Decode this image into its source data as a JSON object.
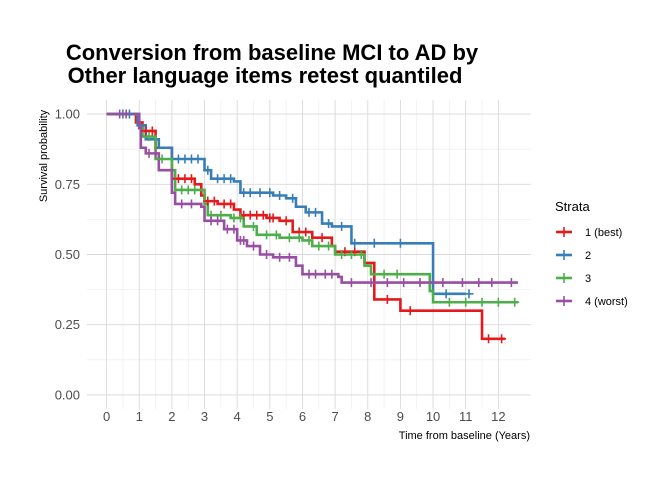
{
  "chart_data": {
    "type": "line",
    "title_lines": [
      "Conversion from baseline MCI to AD by",
      "Other language items retest quantiled"
    ],
    "xlabel": "Time from baseline (Years)",
    "ylabel": "Survival probability",
    "xlim": [
      -0.6,
      13.0
    ],
    "ylim": [
      -0.05,
      1.05
    ],
    "xticks": [
      0,
      1,
      2,
      3,
      4,
      5,
      6,
      7,
      8,
      9,
      10,
      11,
      12
    ],
    "xtick_labels": [
      "0",
      "1",
      "2",
      "3",
      "4",
      "5",
      "6",
      "7",
      "8",
      "9",
      "10",
      "11",
      "12"
    ],
    "yticks": [
      0,
      0.25,
      0.5,
      0.75,
      1
    ],
    "ytick_labels": [
      "0.00",
      "0.25",
      "0.50",
      "0.75",
      "1.00"
    ],
    "grid": true,
    "legend": {
      "title": "Strata",
      "position": "right"
    },
    "series": [
      {
        "name": "1 (best)",
        "color": "#e41a1c",
        "steps": [
          [
            0,
            1.0
          ],
          [
            0.9,
            0.97
          ],
          [
            1.1,
            0.94
          ],
          [
            1.5,
            0.88
          ],
          [
            2.0,
            0.77
          ],
          [
            2.7,
            0.75
          ],
          [
            2.9,
            0.71
          ],
          [
            3.0,
            0.69
          ],
          [
            3.4,
            0.68
          ],
          [
            3.9,
            0.66
          ],
          [
            4.1,
            0.64
          ],
          [
            4.9,
            0.63
          ],
          [
            5.3,
            0.62
          ],
          [
            5.7,
            0.58
          ],
          [
            6.3,
            0.56
          ],
          [
            6.9,
            0.53
          ],
          [
            7.0,
            0.51
          ],
          [
            7.9,
            0.47
          ],
          [
            8.2,
            0.34
          ],
          [
            9.0,
            0.3
          ],
          [
            10.0,
            0.3
          ],
          [
            11.5,
            0.2
          ],
          [
            12.2,
            0.2
          ]
        ],
        "censor": [
          1.2,
          1.4,
          2.2,
          2.4,
          2.6,
          3.1,
          3.3,
          3.6,
          3.8,
          4.2,
          4.4,
          4.6,
          4.8,
          5.0,
          5.1,
          5.5,
          5.9,
          6.1,
          6.6,
          7.3,
          7.6,
          8.6,
          9.3,
          11.7,
          12.1
        ]
      },
      {
        "name": "2",
        "color": "#377eb8",
        "steps": [
          [
            0,
            1.0
          ],
          [
            0.95,
            0.96
          ],
          [
            1.2,
            0.91
          ],
          [
            1.6,
            0.88
          ],
          [
            2.0,
            0.84
          ],
          [
            2.5,
            0.84
          ],
          [
            3.0,
            0.8
          ],
          [
            3.2,
            0.77
          ],
          [
            3.9,
            0.76
          ],
          [
            4.1,
            0.72
          ],
          [
            5.1,
            0.71
          ],
          [
            5.5,
            0.7
          ],
          [
            5.8,
            0.67
          ],
          [
            6.1,
            0.65
          ],
          [
            6.6,
            0.61
          ],
          [
            6.9,
            0.6
          ],
          [
            7.4,
            0.6
          ],
          [
            7.5,
            0.54
          ],
          [
            8.0,
            0.54
          ],
          [
            10.0,
            0.36
          ],
          [
            11.0,
            0.36
          ]
        ],
        "censor": [
          0.5,
          0.7,
          2.2,
          2.4,
          2.6,
          2.8,
          3.1,
          3.4,
          3.6,
          3.8,
          4.2,
          4.4,
          4.7,
          5.0,
          5.3,
          5.7,
          6.2,
          6.4,
          6.8,
          7.2,
          7.6,
          8.2,
          9.0,
          10.4,
          11.1
        ]
      },
      {
        "name": "3",
        "color": "#4daf4a",
        "steps": [
          [
            0,
            1.0
          ],
          [
            1.0,
            0.95
          ],
          [
            1.1,
            0.92
          ],
          [
            1.5,
            0.84
          ],
          [
            2.0,
            0.8
          ],
          [
            2.1,
            0.73
          ],
          [
            2.8,
            0.73
          ],
          [
            3.0,
            0.68
          ],
          [
            3.1,
            0.64
          ],
          [
            3.8,
            0.63
          ],
          [
            4.2,
            0.6
          ],
          [
            4.6,
            0.57
          ],
          [
            5.3,
            0.56
          ],
          [
            6.0,
            0.55
          ],
          [
            6.3,
            0.53
          ],
          [
            7.0,
            0.5
          ],
          [
            7.9,
            0.46
          ],
          [
            8.1,
            0.43
          ],
          [
            9.0,
            0.43
          ],
          [
            9.9,
            0.37
          ],
          [
            10.0,
            0.33
          ],
          [
            12.6,
            0.33
          ]
        ],
        "censor": [
          1.3,
          1.7,
          2.3,
          2.5,
          2.7,
          3.2,
          3.5,
          3.9,
          4.1,
          4.5,
          4.9,
          5.2,
          5.6,
          5.9,
          6.2,
          6.5,
          6.8,
          7.2,
          7.5,
          7.8,
          8.5,
          8.9,
          10.5,
          11.0,
          11.5,
          12.0,
          12.5
        ]
      },
      {
        "name": "4 (worst)",
        "color": "#984ea3",
        "steps": [
          [
            0,
            1.0
          ],
          [
            1.0,
            0.95
          ],
          [
            1.05,
            0.88
          ],
          [
            1.2,
            0.86
          ],
          [
            1.6,
            0.8
          ],
          [
            2.0,
            0.72
          ],
          [
            2.1,
            0.68
          ],
          [
            2.9,
            0.67
          ],
          [
            3.0,
            0.62
          ],
          [
            3.6,
            0.59
          ],
          [
            4.0,
            0.55
          ],
          [
            4.3,
            0.53
          ],
          [
            4.7,
            0.5
          ],
          [
            5.1,
            0.49
          ],
          [
            5.8,
            0.46
          ],
          [
            6.0,
            0.43
          ],
          [
            7.1,
            0.42
          ],
          [
            7.2,
            0.4
          ],
          [
            12.6,
            0.4
          ]
        ],
        "censor": [
          0.4,
          0.6,
          1.3,
          1.5,
          2.3,
          2.6,
          3.2,
          3.4,
          3.7,
          3.9,
          4.1,
          4.2,
          4.5,
          4.9,
          5.3,
          5.6,
          6.2,
          6.4,
          6.7,
          6.9,
          7.5,
          8.1,
          8.6,
          9.1,
          9.6,
          10.3,
          10.9,
          11.4,
          11.8,
          12.4
        ]
      }
    ]
  }
}
